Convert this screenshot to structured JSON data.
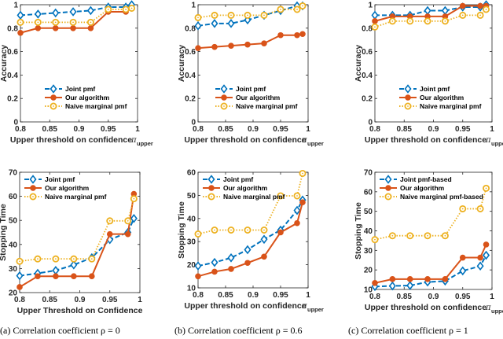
{
  "colors": {
    "joint": "#0072BD",
    "ours": "#D95319",
    "naive": "#EDB120",
    "axis": "#262626"
  },
  "captions": [
    "(a) Correlation coefficient ρ = 0",
    "(b) Correlation coefficient ρ = 0.6",
    "(c) Correlation coefficient ρ = 1"
  ],
  "chart_data": [
    {
      "id": "a-accuracy",
      "type": "line",
      "ylabel": "Accuracy",
      "xlabel": "Upper threshold on confidence",
      "xlabel_symbol": "π",
      "xlabel_sub": "upper",
      "xlim": [
        0.8,
        1
      ],
      "ylim": [
        0,
        1
      ],
      "xticks": [
        "0.8",
        "0.85",
        "0.9",
        "0.95",
        "1"
      ],
      "yticks": [
        "0",
        "0.2",
        "0.4",
        "0.6",
        "0.8",
        "1"
      ],
      "legend": "bottom-right",
      "x": [
        0.8,
        0.83,
        0.86,
        0.89,
        0.92,
        0.95,
        0.98,
        0.99
      ],
      "series": [
        {
          "name": "Joint pmf",
          "key": "joint",
          "values": [
            0.91,
            0.92,
            0.93,
            0.94,
            0.95,
            0.98,
            0.98,
            1.0
          ]
        },
        {
          "name": "Our algorithm",
          "key": "ours",
          "values": [
            0.76,
            0.8,
            0.8,
            0.8,
            0.8,
            0.94,
            0.94,
            0.97
          ]
        },
        {
          "name": "Naive marginal pmf",
          "key": "naive",
          "values": [
            0.85,
            0.85,
            0.85,
            0.85,
            0.85,
            0.96,
            0.96,
            0.97
          ]
        }
      ]
    },
    {
      "id": "b-accuracy",
      "type": "line",
      "ylabel": "Accuracy",
      "xlabel": "Upper threshold on confidence",
      "xlabel_symbol": "π",
      "xlabel_sub": "upper",
      "xlim": [
        0.8,
        1
      ],
      "ylim": [
        0,
        1
      ],
      "xticks": [
        "0.8",
        "0.85",
        "0.9",
        "0.95",
        "1"
      ],
      "yticks": [
        "0",
        "0.2",
        "0.4",
        "0.6",
        "0.8",
        "1"
      ],
      "legend": "bottom-right",
      "x": [
        0.8,
        0.83,
        0.86,
        0.89,
        0.92,
        0.95,
        0.98,
        0.99
      ],
      "series": [
        {
          "name": "Joint pmf",
          "key": "joint",
          "values": [
            0.82,
            0.84,
            0.84,
            0.87,
            0.91,
            0.95,
            0.99,
            0.99
          ]
        },
        {
          "name": "Our algorithm",
          "key": "ours",
          "values": [
            0.63,
            0.64,
            0.65,
            0.66,
            0.67,
            0.74,
            0.74,
            0.75
          ]
        },
        {
          "name": "Naive marginal pmf",
          "key": "naive",
          "values": [
            0.89,
            0.91,
            0.91,
            0.91,
            0.91,
            0.96,
            0.96,
            0.99
          ]
        }
      ]
    },
    {
      "id": "c-accuracy",
      "type": "line",
      "ylabel": "Accuracy",
      "xlabel": "Upper threshold on confidence",
      "xlabel_symbol": "π",
      "xlabel_sub": "upper",
      "xlim": [
        0.8,
        1
      ],
      "ylim": [
        0,
        1
      ],
      "xticks": [
        "0.8",
        "0.85",
        "0.9",
        "0.95",
        "1"
      ],
      "yticks": [
        "0",
        "0.2",
        "0.4",
        "0.6",
        "0.8",
        "1"
      ],
      "legend": "bottom-right",
      "x": [
        0.8,
        0.83,
        0.86,
        0.89,
        0.92,
        0.95,
        0.98,
        0.99
      ],
      "series": [
        {
          "name": "Joint pmf",
          "key": "joint",
          "values": [
            0.91,
            0.91,
            0.91,
            0.95,
            0.95,
            0.98,
            0.98,
            1.0
          ]
        },
        {
          "name": "Our algorithm",
          "key": "ours",
          "values": [
            0.86,
            0.9,
            0.9,
            0.9,
            0.9,
            0.99,
            0.99,
            0.99
          ]
        },
        {
          "name": "Naive marginal pmf",
          "key": "naive",
          "values": [
            0.81,
            0.86,
            0.86,
            0.86,
            0.86,
            0.91,
            0.91,
            0.96
          ]
        }
      ]
    },
    {
      "id": "a-stopping",
      "type": "line",
      "ylabel": "Stopping Time",
      "xlabel": "Upper Threshold on Confidence",
      "xlabel_symbol": "",
      "xlabel_sub": "",
      "xlim": [
        0.8,
        1
      ],
      "ylim": [
        20,
        70
      ],
      "xticks": [
        "0.8",
        "0.85",
        "0.9",
        "0.95",
        "1"
      ],
      "yticks": [
        "20",
        "30",
        "40",
        "50",
        "60",
        "70"
      ],
      "legend": "top-left",
      "x": [
        0.8,
        0.83,
        0.86,
        0.89,
        0.92,
        0.95,
        0.98,
        0.99
      ],
      "series": [
        {
          "name": "Joint pmf",
          "key": "joint",
          "values": [
            27,
            28,
            29.2,
            31.5,
            34.5,
            42,
            45,
            50.8
          ]
        },
        {
          "name": "Our algorithm",
          "key": "ours",
          "values": [
            22.3,
            26.8,
            26.8,
            26.8,
            26.8,
            44.3,
            44.3,
            61
          ]
        },
        {
          "name": "Naive marginal pmf",
          "key": "naive",
          "values": [
            33,
            34,
            34,
            34,
            34,
            49.8,
            49.8,
            59
          ]
        }
      ]
    },
    {
      "id": "b-stopping",
      "type": "line",
      "ylabel": "Stopping Time",
      "xlabel": "Upper threshold on confidence",
      "xlabel_symbol": "π",
      "xlabel_sub": "upper",
      "xlim": [
        0.8,
        1
      ],
      "ylim": [
        10,
        60
      ],
      "xticks": [
        "0.8",
        "0.85",
        "0.9",
        "0.95",
        "1"
      ],
      "yticks": [
        "10",
        "20",
        "30",
        "40",
        "50",
        "60"
      ],
      "legend": "top-left",
      "x": [
        0.8,
        0.83,
        0.86,
        0.89,
        0.92,
        0.95,
        0.98,
        0.99
      ],
      "series": [
        {
          "name": "Joint pmf",
          "key": "joint",
          "values": [
            19.5,
            21,
            23,
            26.5,
            31,
            35,
            43.5,
            48
          ]
        },
        {
          "name": "Our algorithm",
          "key": "ours",
          "values": [
            15,
            17,
            18.2,
            20.8,
            23.5,
            34,
            38,
            47
          ]
        },
        {
          "name": "Naive marginal pmf",
          "key": "naive",
          "values": [
            33.3,
            35,
            35,
            35,
            35,
            49.8,
            49.8,
            59.5
          ]
        }
      ]
    },
    {
      "id": "c-stopping",
      "type": "line",
      "ylabel": "Stopping Time",
      "xlabel": "Upper threshold on confidence",
      "xlabel_symbol": "π",
      "xlabel_sub": "upper",
      "xlim": [
        0.8,
        1
      ],
      "ylim": [
        10,
        70
      ],
      "xticks": [
        "0.8",
        "0.85",
        "0.9",
        "0.95",
        "1"
      ],
      "yticks": [
        "10",
        "20",
        "30",
        "40",
        "50",
        "60",
        "70"
      ],
      "legend": "top-left",
      "x": [
        0.8,
        0.83,
        0.86,
        0.89,
        0.92,
        0.95,
        0.98,
        0.99
      ],
      "series": [
        {
          "name": "Joint pmf-based",
          "key": "joint",
          "values": [
            11.5,
            11.8,
            12,
            13.8,
            14.3,
            19.5,
            22,
            27.5
          ]
        },
        {
          "name": "Our algorithm",
          "key": "ours",
          "values": [
            13.3,
            15.3,
            15.3,
            15.3,
            15.3,
            26.3,
            26.3,
            33
          ]
        },
        {
          "name": "Naive marginal pmf-based",
          "key": "naive",
          "values": [
            35.5,
            37.5,
            37.5,
            37.5,
            37.5,
            51.3,
            51.3,
            61.8
          ]
        }
      ]
    }
  ]
}
